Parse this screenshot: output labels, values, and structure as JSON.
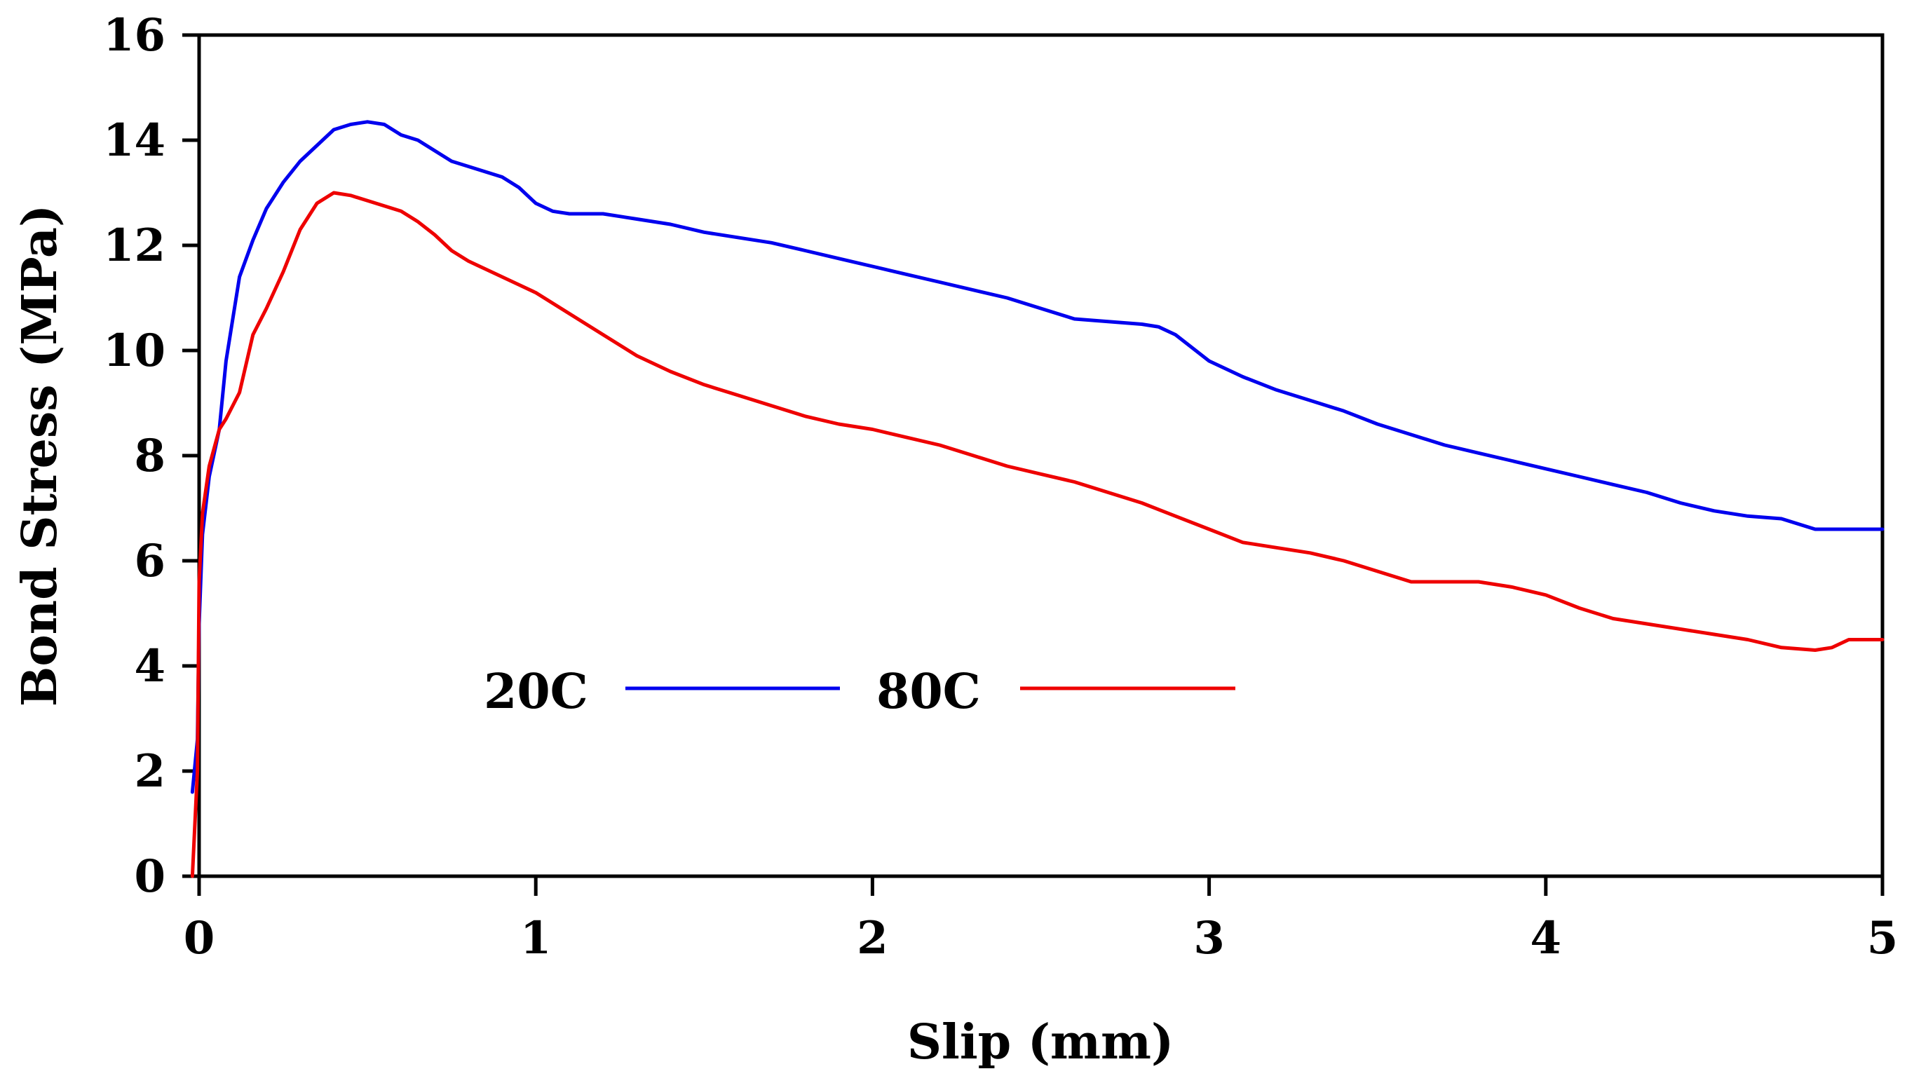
{
  "chart_data": {
    "type": "line",
    "title": "",
    "xlabel": "Slip (mm)",
    "ylabel": "Bond Stress (MPa)",
    "xlim": [
      0,
      5
    ],
    "ylim": [
      0,
      16
    ],
    "x_ticks": [
      "0",
      "1",
      "2",
      "3",
      "4",
      "5"
    ],
    "y_ticks": [
      "0",
      "2",
      "4",
      "6",
      "8",
      "10",
      "12",
      "14",
      "16"
    ],
    "grid": false,
    "legend_position": "lower-center",
    "series": [
      {
        "name": "20C",
        "color": "#0000ee",
        "x": [
          -0.02,
          -0.005,
          0.0,
          0.01,
          0.03,
          0.06,
          0.08,
          0.12,
          0.16,
          0.2,
          0.25,
          0.3,
          0.35,
          0.4,
          0.45,
          0.5,
          0.55,
          0.6,
          0.65,
          0.7,
          0.75,
          0.8,
          0.85,
          0.9,
          0.95,
          1.0,
          1.05,
          1.1,
          1.15,
          1.2,
          1.3,
          1.4,
          1.5,
          1.6,
          1.7,
          1.8,
          1.9,
          2.0,
          2.1,
          2.2,
          2.3,
          2.4,
          2.5,
          2.6,
          2.7,
          2.8,
          2.85,
          2.9,
          3.0,
          3.1,
          3.2,
          3.3,
          3.4,
          3.5,
          3.6,
          3.7,
          3.8,
          3.9,
          4.0,
          4.1,
          4.2,
          4.3,
          4.4,
          4.5,
          4.6,
          4.7,
          4.8,
          4.9,
          5.0
        ],
        "y": [
          1.6,
          2.6,
          4.8,
          6.5,
          7.6,
          8.5,
          9.8,
          11.4,
          12.1,
          12.7,
          13.2,
          13.6,
          13.9,
          14.2,
          14.3,
          14.35,
          14.3,
          14.1,
          14.0,
          13.8,
          13.6,
          13.5,
          13.4,
          13.3,
          13.1,
          12.8,
          12.65,
          12.6,
          12.6,
          12.6,
          12.5,
          12.4,
          12.25,
          12.15,
          12.05,
          11.9,
          11.75,
          11.6,
          11.45,
          11.3,
          11.15,
          11.0,
          10.8,
          10.6,
          10.55,
          10.5,
          10.45,
          10.3,
          9.8,
          9.5,
          9.25,
          9.05,
          8.85,
          8.6,
          8.4,
          8.2,
          8.05,
          7.9,
          7.75,
          7.6,
          7.45,
          7.3,
          7.1,
          6.95,
          6.85,
          6.8,
          6.6,
          6.6,
          6.6
        ]
      },
      {
        "name": "80C",
        "color": "#ee0000",
        "x": [
          -0.02,
          -0.005,
          0.0,
          0.01,
          0.03,
          0.06,
          0.08,
          0.12,
          0.16,
          0.2,
          0.25,
          0.3,
          0.35,
          0.4,
          0.45,
          0.5,
          0.55,
          0.6,
          0.65,
          0.7,
          0.75,
          0.8,
          0.85,
          0.9,
          0.95,
          1.0,
          1.05,
          1.1,
          1.2,
          1.3,
          1.4,
          1.5,
          1.6,
          1.7,
          1.8,
          1.9,
          2.0,
          2.1,
          2.2,
          2.3,
          2.4,
          2.5,
          2.6,
          2.7,
          2.8,
          2.9,
          3.0,
          3.1,
          3.2,
          3.3,
          3.4,
          3.5,
          3.6,
          3.7,
          3.8,
          3.9,
          4.0,
          4.1,
          4.2,
          4.3,
          4.4,
          4.5,
          4.6,
          4.7,
          4.8,
          4.85,
          4.9,
          5.0
        ],
        "y": [
          0.0,
          2.0,
          5.6,
          6.9,
          7.8,
          8.5,
          8.7,
          9.2,
          10.3,
          10.8,
          11.5,
          12.3,
          12.8,
          13.0,
          12.95,
          12.85,
          12.75,
          12.65,
          12.45,
          12.2,
          11.9,
          11.7,
          11.55,
          11.4,
          11.25,
          11.1,
          10.9,
          10.7,
          10.3,
          9.9,
          9.6,
          9.35,
          9.15,
          8.95,
          8.75,
          8.6,
          8.5,
          8.35,
          8.2,
          8.0,
          7.8,
          7.65,
          7.5,
          7.3,
          7.1,
          6.85,
          6.6,
          6.35,
          6.25,
          6.15,
          6.0,
          5.8,
          5.6,
          5.6,
          5.6,
          5.5,
          5.35,
          5.1,
          4.9,
          4.8,
          4.7,
          4.6,
          4.5,
          4.35,
          4.3,
          4.35,
          4.5,
          4.5
        ]
      }
    ]
  }
}
